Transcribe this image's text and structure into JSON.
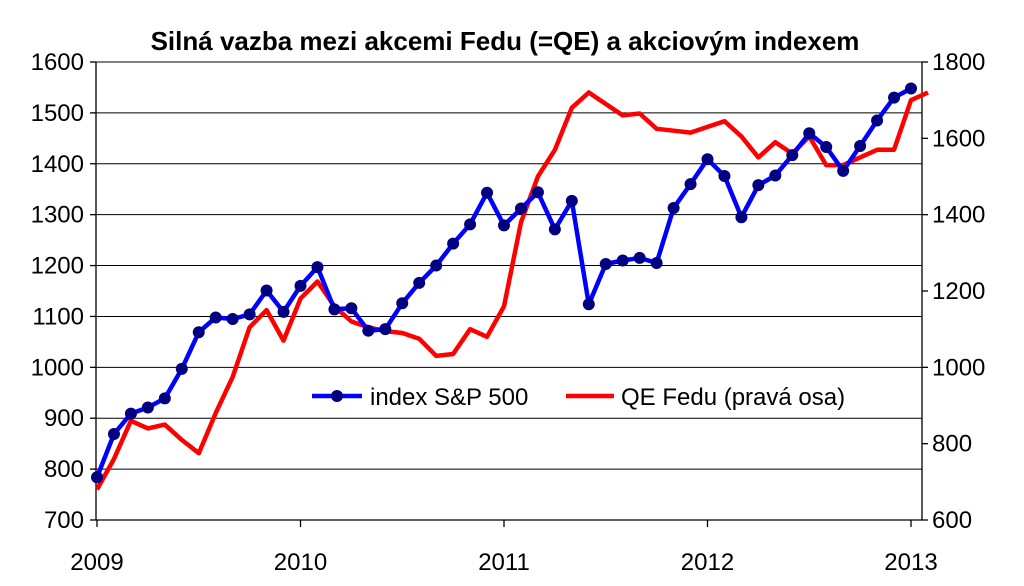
{
  "chart_data": {
    "type": "line",
    "title": "Silná vazba mezi akcemi Fedu (=QE) a akciovým indexem",
    "x_tick_labels": [
      "2009",
      "2010",
      "2011",
      "2012",
      "2013"
    ],
    "y_left_ticks": [
      700,
      800,
      900,
      1000,
      1100,
      1200,
      1300,
      1400,
      1500,
      1600
    ],
    "y_right_ticks": [
      600,
      800,
      1000,
      1200,
      1400,
      1600,
      1800
    ],
    "y_left_range": [
      700,
      1600
    ],
    "y_right_range": [
      600,
      1800
    ],
    "grid": "horizontal",
    "legend_position": "lower-right",
    "series": [
      {
        "name": "index S&P 500",
        "axis": "left",
        "color": "#0000ff",
        "marker": "circle",
        "marker_color": "#000080",
        "points": [
          [
            "2009-01",
            784
          ],
          [
            "2009-02",
            869
          ],
          [
            "2009-03",
            909
          ],
          [
            "2009-04",
            921
          ],
          [
            "2009-05",
            939
          ],
          [
            "2009-06",
            997
          ],
          [
            "2009-07",
            1069
          ],
          [
            "2009-08",
            1098
          ],
          [
            "2009-09",
            1095
          ],
          [
            "2009-10",
            1104
          ],
          [
            "2009-11",
            1151
          ],
          [
            "2009-12",
            1109
          ],
          [
            "2010-01",
            1160
          ],
          [
            "2010-02",
            1197
          ],
          [
            "2010-03",
            1114
          ],
          [
            "2010-04",
            1116
          ],
          [
            "2010-05",
            1072
          ],
          [
            "2010-06",
            1075
          ],
          [
            "2010-07",
            1126
          ],
          [
            "2010-08",
            1166
          ],
          [
            "2010-09",
            1200
          ],
          [
            "2010-10",
            1243
          ],
          [
            "2010-11",
            1281
          ],
          [
            "2010-12",
            1343
          ],
          [
            "2011-01",
            1279
          ],
          [
            "2011-02",
            1312
          ],
          [
            "2011-03",
            1344
          ],
          [
            "2011-04",
            1271
          ],
          [
            "2011-05",
            1327
          ],
          [
            "2011-06",
            1124
          ],
          [
            "2011-07",
            1203
          ],
          [
            "2011-08",
            1210
          ],
          [
            "2011-09",
            1215
          ],
          [
            "2011-10",
            1205
          ],
          [
            "2011-11",
            1313
          ],
          [
            "2011-12",
            1360
          ],
          [
            "2012-01",
            1409
          ],
          [
            "2012-02",
            1376
          ],
          [
            "2012-03",
            1295
          ],
          [
            "2012-04",
            1358
          ],
          [
            "2012-05",
            1377
          ],
          [
            "2012-06",
            1417
          ],
          [
            "2012-07",
            1460
          ],
          [
            "2012-08",
            1433
          ],
          [
            "2012-09",
            1386
          ],
          [
            "2012-10",
            1435
          ],
          [
            "2012-11",
            1485
          ],
          [
            "2012-12",
            1530
          ],
          [
            "2013-01",
            1548
          ]
        ]
      },
      {
        "name": "QE Fedu (pravá osa)",
        "axis": "right",
        "color": "#ff0000",
        "points": [
          [
            "2009-01",
            680
          ],
          [
            "2009-02",
            760
          ],
          [
            "2009-03",
            860
          ],
          [
            "2009-04",
            840
          ],
          [
            "2009-05",
            850
          ],
          [
            "2009-06",
            810
          ],
          [
            "2009-07",
            775
          ],
          [
            "2009-08",
            880
          ],
          [
            "2009-09",
            975
          ],
          [
            "2009-10",
            1105
          ],
          [
            "2009-11",
            1150
          ],
          [
            "2009-12",
            1070
          ],
          [
            "2010-01",
            1180
          ],
          [
            "2010-02",
            1225
          ],
          [
            "2010-03",
            1160
          ],
          [
            "2010-04",
            1120
          ],
          [
            "2010-05",
            1105
          ],
          [
            "2010-06",
            1095
          ],
          [
            "2010-07",
            1090
          ],
          [
            "2010-08",
            1075
          ],
          [
            "2010-09",
            1030
          ],
          [
            "2010-10",
            1035
          ],
          [
            "2010-11",
            1100
          ],
          [
            "2010-12",
            1080
          ],
          [
            "2011-01",
            1160
          ],
          [
            "2011-02",
            1380
          ],
          [
            "2011-03",
            1500
          ],
          [
            "2011-04",
            1570
          ],
          [
            "2011-05",
            1680
          ],
          [
            "2011-06",
            1720
          ],
          [
            "2011-07",
            1690
          ],
          [
            "2011-08",
            1660
          ],
          [
            "2011-09",
            1665
          ],
          [
            "2011-10",
            1625
          ],
          [
            "2011-11",
            1620
          ],
          [
            "2011-12",
            1615
          ],
          [
            "2012-01",
            1630
          ],
          [
            "2012-02",
            1645
          ],
          [
            "2012-03",
            1605
          ],
          [
            "2012-04",
            1550
          ],
          [
            "2012-05",
            1590
          ],
          [
            "2012-06",
            1560
          ],
          [
            "2012-07",
            1605
          ],
          [
            "2012-08",
            1530
          ],
          [
            "2012-09",
            1530
          ],
          [
            "2012-10",
            1550
          ],
          [
            "2012-11",
            1570
          ],
          [
            "2012-12",
            1570
          ],
          [
            "2013-01",
            1700
          ],
          [
            "2013-02",
            1720
          ]
        ]
      }
    ]
  }
}
